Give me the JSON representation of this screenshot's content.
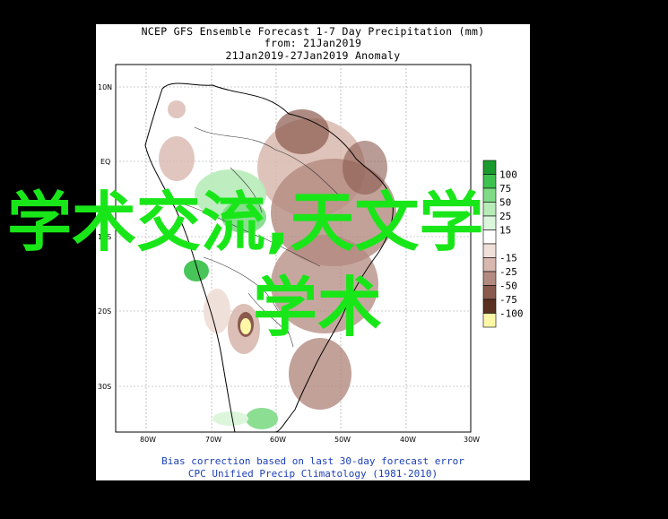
{
  "titles": {
    "line1": "NCEP GFS Ensemble Forecast 1-7 Day Precipitation (mm)",
    "line2": "from: 21Jan2019",
    "line3": "21Jan2019-27Jan2019 Anomaly"
  },
  "footer": {
    "line1": "Bias correction based on last 30-day forecast error",
    "line2": "CPC Unified Precip Climatology (1981-2010)"
  },
  "axes": {
    "lat_labels": [
      "10N",
      "EQ",
      "10S",
      "20S",
      "30S"
    ],
    "lon_labels": [
      "80W",
      "70W",
      "60W",
      "50W",
      "40W",
      "30W"
    ]
  },
  "legend": {
    "entries": [
      {
        "label": "100",
        "color": "#1a9a2e"
      },
      {
        "label": "75",
        "color": "#3dc24f"
      },
      {
        "label": "50",
        "color": "#7fdb86"
      },
      {
        "label": "25",
        "color": "#b7ecb9"
      },
      {
        "label": "15",
        "color": "#dcf6dc"
      },
      {
        "label": "",
        "color": "#ffffff"
      },
      {
        "label": "-15",
        "color": "#f0e0da"
      },
      {
        "label": "-25",
        "color": "#d8b8ae"
      },
      {
        "label": "-50",
        "color": "#b38a80"
      },
      {
        "label": "-75",
        "color": "#8a5a4e"
      },
      {
        "label": "-100",
        "color": "#5a3020"
      },
      {
        "label": "",
        "color": "#fff7a8"
      }
    ]
  },
  "watermark": {
    "line1": "学术交流,天文学",
    "line2": "学术"
  }
}
